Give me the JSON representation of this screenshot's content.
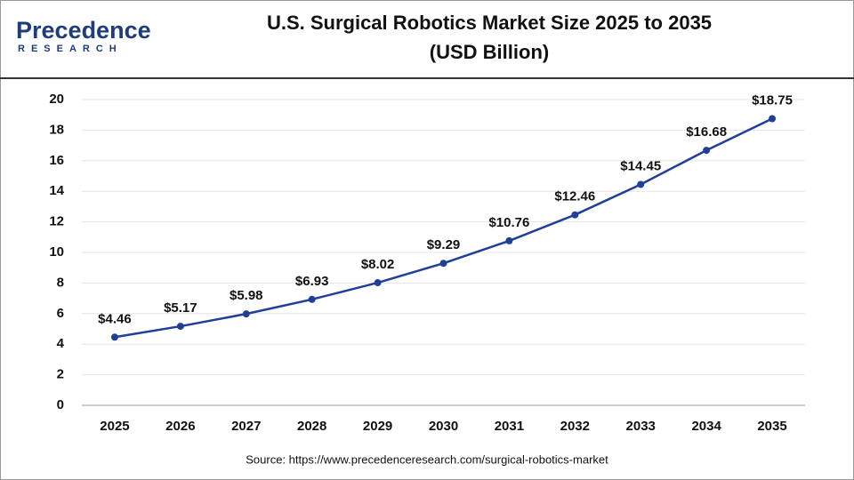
{
  "logo": {
    "name": "Precedence",
    "tagline": "RESEARCH"
  },
  "source": "Source: https://www.precedenceresearch.com/surgical-robotics-market",
  "chart_data": {
    "type": "line",
    "title": "U.S. Surgical Robotics Market Size 2025 to 2035",
    "subtitle": "(USD Billion)",
    "categories": [
      "2025",
      "2026",
      "2027",
      "2028",
      "2029",
      "2030",
      "2031",
      "2032",
      "2033",
      "2034",
      "2035"
    ],
    "values": [
      4.46,
      5.17,
      5.98,
      6.93,
      8.02,
      9.29,
      10.76,
      12.46,
      14.45,
      16.68,
      18.75
    ],
    "value_labels": [
      "$4.46",
      "$5.17",
      "$5.98",
      "$6.93",
      "$8.02",
      "$9.29",
      "$10.76",
      "$12.46",
      "$14.45",
      "$16.68",
      "$18.75"
    ],
    "color": "#1f3f99",
    "ylim": [
      0,
      20
    ],
    "yticks": [
      0,
      2,
      4,
      6,
      8,
      10,
      12,
      14,
      16,
      18,
      20
    ],
    "grid": true
  }
}
